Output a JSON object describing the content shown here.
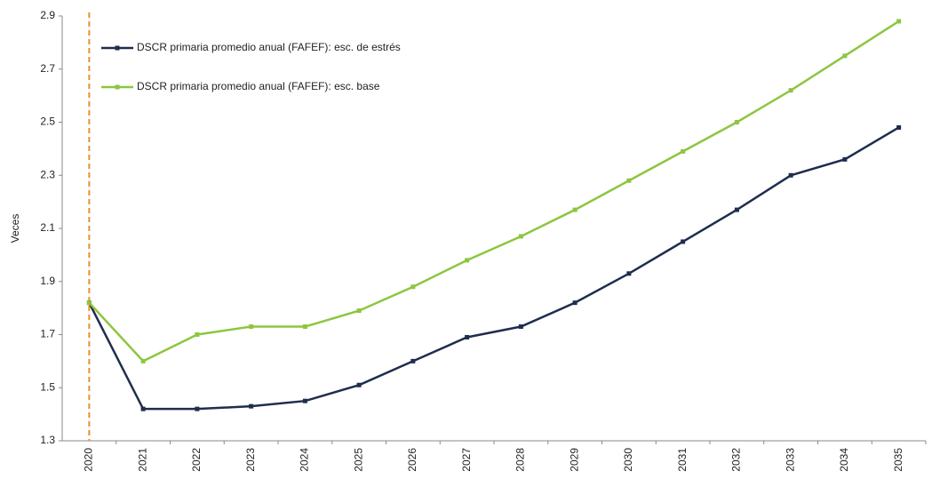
{
  "chart_data": {
    "type": "line",
    "y_label": "Veces",
    "categories": [
      "2020",
      "2021",
      "2022",
      "2023",
      "2024",
      "2025",
      "2026",
      "2027",
      "2028",
      "2029",
      "2030",
      "2031",
      "2032",
      "2033",
      "2034",
      "2035"
    ],
    "series": [
      {
        "name": "DSCR primaria promedio anual (FAFEF): esc. de estrés",
        "color": "#1f2d4e",
        "values": [
          1.82,
          1.42,
          1.42,
          1.43,
          1.45,
          1.51,
          1.6,
          1.69,
          1.73,
          1.82,
          1.93,
          2.05,
          2.17,
          2.3,
          2.36,
          2.48
        ]
      },
      {
        "name": "DSCR primaria promedio anual (FAFEF): esc. base",
        "color": "#8dc63f",
        "values": [
          1.82,
          1.6,
          1.7,
          1.73,
          1.73,
          1.79,
          1.88,
          1.98,
          2.07,
          2.17,
          2.28,
          2.39,
          2.5,
          2.62,
          2.75,
          2.88
        ]
      }
    ],
    "ylim": [
      1.3,
      2.9
    ],
    "yticks": [
      1.3,
      1.5,
      1.7,
      1.9,
      2.1,
      2.3,
      2.5,
      2.7,
      2.9
    ],
    "grid": false,
    "legend": "top-left"
  }
}
